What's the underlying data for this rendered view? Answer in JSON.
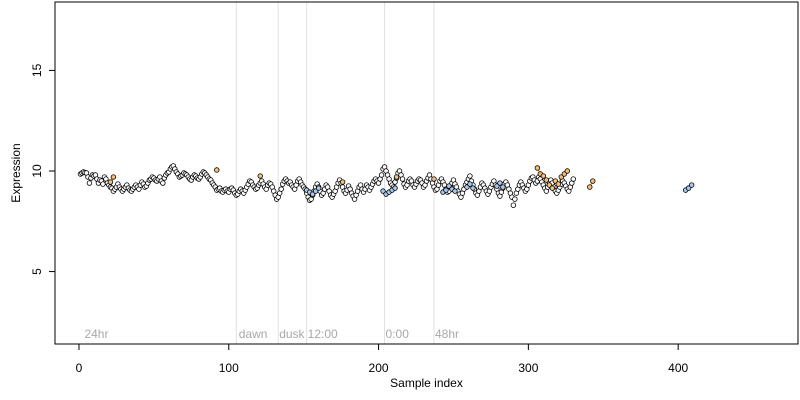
{
  "chart_data": {
    "type": "scatter",
    "xlabel": "Sample index",
    "ylabel": "Expression",
    "xlim": [
      -16,
      480
    ],
    "ylim": [
      1.4,
      18.4
    ],
    "x_ticks": [
      0,
      100,
      200,
      300,
      400
    ],
    "y_ticks": [
      5,
      10,
      15
    ],
    "grid": false,
    "colors": {
      "point_edge": "#000000",
      "point_fill_default": "#ffffff",
      "point_fill_orange": "#f5c07a",
      "point_fill_blue": "#a9c8ec",
      "highlight_line_orange": "#f0a040",
      "highlight_line_blue": "#8fb3e6",
      "annotation": "#a8a8a8",
      "vline": "#e0e0e0"
    },
    "annotations": [
      {
        "x": 3,
        "label": "24hr"
      },
      {
        "x": 106,
        "label": "dawn"
      },
      {
        "x": 133,
        "label": "dusk"
      },
      {
        "x": 152,
        "label": "12:00"
      },
      {
        "x": 204,
        "label": "0:00"
      },
      {
        "x": 237,
        "label": "48hr"
      }
    ],
    "vertical_lines": [
      105,
      133,
      152,
      204,
      237
    ],
    "series": [
      {
        "x_start": 1,
        "values": [
          9.85,
          9.9,
          9.95,
          9.92,
          9.9,
          9.7,
          9.4,
          9.65,
          9.8,
          9.75,
          9.8,
          9.6,
          9.4,
          9.55,
          9.5,
          9.35,
          9.7,
          9.6,
          9.4,
          9.3,
          9.2,
          9.15,
          9.0,
          9.1,
          9.2,
          9.35,
          9.2,
          9.1,
          9.0,
          9.1,
          9.2,
          9.3,
          9.15,
          9.05,
          9.0,
          9.1,
          9.2,
          9.3,
          9.2,
          9.1,
          9.3,
          9.45,
          9.35,
          9.2,
          9.25,
          9.4,
          9.55,
          9.6,
          9.7,
          9.65,
          9.55,
          9.5,
          9.6,
          9.7,
          9.5,
          9.4,
          9.65,
          9.8,
          9.9,
          9.95,
          10.1,
          10.2,
          10.25,
          10.1,
          9.95,
          9.85,
          9.7,
          9.75,
          9.8,
          9.9,
          9.85,
          9.8,
          9.7,
          9.6,
          9.55,
          9.7,
          9.8,
          9.75,
          9.65,
          9.6,
          9.7,
          9.85,
          9.95,
          9.9,
          9.8,
          9.7,
          9.6,
          9.55,
          9.4,
          9.3,
          9.2,
          9.05,
          9.1,
          9.15,
          9.0,
          8.95,
          9.05,
          9.1,
          9.0,
          8.95,
          9.1,
          9.15,
          9.05,
          8.9,
          8.8,
          8.85,
          9.0,
          9.1,
          9.0,
          8.9,
          9.05,
          9.2,
          9.35,
          9.5,
          9.45,
          9.3,
          9.2,
          9.1,
          9.15,
          9.3,
          9.4,
          9.5,
          9.35,
          9.2,
          9.1,
          9.3,
          9.4,
          9.35,
          9.2,
          9.0,
          8.8,
          8.6,
          8.7,
          8.9,
          9.1,
          9.35,
          9.5,
          9.6,
          9.5,
          9.4,
          9.45,
          9.3,
          9.2,
          9.1,
          9.3,
          9.5,
          9.6,
          9.45,
          9.3,
          9.2,
          9.1,
          8.9,
          8.7,
          8.55,
          8.6,
          8.8,
          9.0,
          9.2,
          9.35,
          9.2,
          9.0,
          8.8,
          8.9,
          9.1,
          9.3,
          9.2,
          9.0,
          8.8,
          8.7,
          8.85,
          9.0,
          9.2,
          9.4,
          9.55,
          9.4,
          9.2,
          9.0,
          8.9,
          9.05,
          9.25,
          9.1,
          8.9,
          8.75,
          8.6,
          8.8,
          9.0,
          9.2,
          9.3,
          9.1,
          8.95,
          9.1,
          9.3,
          9.2,
          9.05,
          9.2,
          9.35,
          9.5,
          9.6,
          9.5,
          9.4,
          9.6,
          9.8,
          10.1,
          10.2,
          10.0,
          9.8,
          9.6,
          9.4,
          9.3,
          9.2,
          9.45,
          9.65,
          9.9,
          10.0,
          9.8,
          9.6,
          9.35,
          9.2,
          9.3,
          9.5,
          9.6,
          9.5,
          9.3,
          9.2,
          9.35,
          9.5,
          9.6,
          9.55,
          9.4,
          9.2,
          9.3,
          9.5,
          9.65,
          9.8,
          9.6,
          9.4,
          9.2,
          9.05,
          9.1,
          9.3,
          9.5,
          9.6,
          9.45,
          9.3,
          9.1,
          8.95,
          9.0,
          9.2,
          9.4,
          9.55,
          9.35,
          9.2,
          9.0,
          8.85,
          8.7,
          8.9,
          9.1,
          9.3,
          9.45,
          9.6,
          9.75,
          9.5,
          9.3,
          9.1,
          8.9,
          8.8,
          9.0,
          9.2,
          9.4,
          9.3,
          9.15,
          9.0,
          8.85,
          9.0,
          9.2,
          9.35,
          9.5,
          9.3,
          9.1,
          8.9,
          8.75,
          8.95,
          9.15,
          9.35,
          9.45,
          9.3,
          9.1,
          8.9,
          8.7,
          8.3,
          8.6,
          8.9,
          9.1,
          9.3,
          9.45,
          9.3,
          9.15,
          9.0,
          9.1,
          9.3,
          9.5,
          9.65,
          9.7,
          9.55,
          9.4,
          9.5,
          9.7,
          9.6,
          9.45,
          9.3,
          9.15,
          9.0,
          9.2,
          9.4,
          9.55,
          9.4,
          9.2,
          9.0,
          8.9,
          9.05,
          9.2,
          9.35,
          9.5,
          9.4,
          9.25,
          9.1,
          9.0,
          9.2,
          9.4,
          9.6
        ]
      }
    ],
    "highlights": [
      {
        "color": "orange",
        "points": [
          [
            21,
            9.45
          ],
          [
            23,
            9.7
          ],
          [
            92,
            10.05
          ],
          [
            121,
            9.75
          ],
          [
            176,
            9.45
          ],
          [
            212,
            9.7
          ],
          [
            237,
            9.6
          ],
          [
            306,
            10.15
          ],
          [
            308,
            9.85
          ],
          [
            310,
            9.75
          ],
          [
            312,
            9.55
          ],
          [
            314,
            9.3
          ],
          [
            316,
            9.15
          ],
          [
            318,
            9.5
          ],
          [
            320,
            9.35
          ],
          [
            322,
            9.7
          ],
          [
            324,
            9.85
          ],
          [
            326,
            10.0
          ],
          [
            341,
            9.2
          ],
          [
            343,
            9.5
          ]
        ]
      },
      {
        "color": "blue",
        "points": [
          [
            152,
            9.05
          ],
          [
            154,
            8.95
          ],
          [
            156,
            8.85
          ],
          [
            158,
            9.0
          ],
          [
            160,
            9.15
          ],
          [
            203,
            9.0
          ],
          [
            205,
            8.85
          ],
          [
            207,
            8.95
          ],
          [
            209,
            9.05
          ],
          [
            211,
            9.15
          ],
          [
            243,
            8.95
          ],
          [
            245,
            9.05
          ],
          [
            247,
            9.25
          ],
          [
            249,
            9.1
          ],
          [
            251,
            9.0
          ],
          [
            259,
            9.2
          ],
          [
            261,
            9.35
          ],
          [
            263,
            9.15
          ],
          [
            279,
            9.25
          ],
          [
            281,
            9.4
          ],
          [
            283,
            9.2
          ],
          [
            405,
            9.05
          ],
          [
            407,
            9.15
          ],
          [
            409,
            9.3
          ]
        ]
      }
    ]
  }
}
